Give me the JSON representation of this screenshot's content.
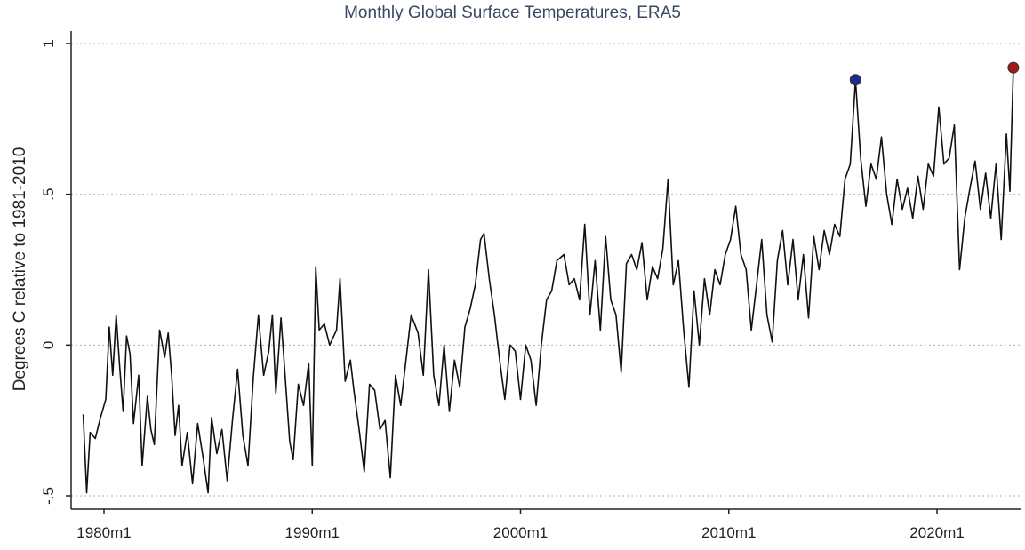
{
  "chart_data": {
    "type": "line",
    "title": "Monthly Global Surface Temperatures, ERA5",
    "xlabel": "",
    "ylabel": "Degrees C relative to 1981-2010",
    "xlim": [
      "1979m1",
      "2023m9"
    ],
    "ylim": [
      -0.52,
      1.05
    ],
    "x_ticks": [
      "1980m1",
      "1990m1",
      "2000m1",
      "2010m1",
      "2020m1"
    ],
    "y_ticks": [
      {
        "value": 1,
        "label": "1"
      },
      {
        "value": 0.5,
        "label": ".5"
      },
      {
        "value": 0,
        "label": "0"
      },
      {
        "value": -0.5,
        "label": "-.5"
      }
    ],
    "grid": "horizontal dotted",
    "line_color": "#111111",
    "series": [
      {
        "points": [
          [
            "1979-01",
            -0.23
          ],
          [
            "1979-03",
            -0.49
          ],
          [
            "1979-05",
            -0.29
          ],
          [
            "1979-08",
            -0.31
          ],
          [
            "1979-11",
            -0.24
          ],
          [
            "1980-02",
            -0.18
          ],
          [
            "1980-04",
            0.06
          ],
          [
            "1980-06",
            -0.1
          ],
          [
            "1980-08",
            0.1
          ],
          [
            "1980-10",
            -0.07
          ],
          [
            "1980-12",
            -0.22
          ],
          [
            "1981-02",
            0.03
          ],
          [
            "1981-04",
            -0.03
          ],
          [
            "1981-06",
            -0.26
          ],
          [
            "1981-09",
            -0.1
          ],
          [
            "1981-11",
            -0.4
          ],
          [
            "1982-02",
            -0.17
          ],
          [
            "1982-04",
            -0.28
          ],
          [
            "1982-06",
            -0.33
          ],
          [
            "1982-09",
            0.05
          ],
          [
            "1982-12",
            -0.04
          ],
          [
            "1983-02",
            0.04
          ],
          [
            "1983-04",
            -0.1
          ],
          [
            "1983-06",
            -0.3
          ],
          [
            "1983-08",
            -0.2
          ],
          [
            "1983-10",
            -0.4
          ],
          [
            "1984-01",
            -0.29
          ],
          [
            "1984-04",
            -0.46
          ],
          [
            "1984-07",
            -0.26
          ],
          [
            "1984-10",
            -0.37
          ],
          [
            "1985-01",
            -0.49
          ],
          [
            "1985-03",
            -0.24
          ],
          [
            "1985-06",
            -0.36
          ],
          [
            "1985-09",
            -0.28
          ],
          [
            "1985-12",
            -0.45
          ],
          [
            "1986-03",
            -0.25
          ],
          [
            "1986-06",
            -0.08
          ],
          [
            "1986-09",
            -0.3
          ],
          [
            "1986-12",
            -0.4
          ],
          [
            "1987-03",
            -0.11
          ],
          [
            "1987-06",
            0.1
          ],
          [
            "1987-09",
            -0.1
          ],
          [
            "1987-12",
            -0.02
          ],
          [
            "1988-02",
            0.1
          ],
          [
            "1988-04",
            -0.16
          ],
          [
            "1988-07",
            0.09
          ],
          [
            "1988-09",
            -0.07
          ],
          [
            "1988-12",
            -0.32
          ],
          [
            "1989-02",
            -0.38
          ],
          [
            "1989-05",
            -0.13
          ],
          [
            "1989-08",
            -0.2
          ],
          [
            "1989-11",
            -0.06
          ],
          [
            "1990-01",
            -0.4
          ],
          [
            "1990-03",
            0.26
          ],
          [
            "1990-05",
            0.05
          ],
          [
            "1990-08",
            0.07
          ],
          [
            "1990-11",
            0.0
          ],
          [
            "1991-03",
            0.05
          ],
          [
            "1991-05",
            0.22
          ],
          [
            "1991-08",
            -0.12
          ],
          [
            "1991-11",
            -0.05
          ],
          [
            "1992-01",
            -0.15
          ],
          [
            "1992-04",
            -0.28
          ],
          [
            "1992-07",
            -0.42
          ],
          [
            "1992-10",
            -0.13
          ],
          [
            "1993-01",
            -0.15
          ],
          [
            "1993-04",
            -0.28
          ],
          [
            "1993-07",
            -0.25
          ],
          [
            "1993-10",
            -0.44
          ],
          [
            "1994-01",
            -0.1
          ],
          [
            "1994-04",
            -0.2
          ],
          [
            "1994-07",
            -0.05
          ],
          [
            "1994-10",
            0.1
          ],
          [
            "1995-02",
            0.04
          ],
          [
            "1995-05",
            -0.1
          ],
          [
            "1995-08",
            0.25
          ],
          [
            "1995-11",
            -0.1
          ],
          [
            "1996-02",
            -0.2
          ],
          [
            "1996-05",
            0.0
          ],
          [
            "1996-08",
            -0.22
          ],
          [
            "1996-11",
            -0.05
          ],
          [
            "1997-02",
            -0.14
          ],
          [
            "1997-05",
            0.06
          ],
          [
            "1997-08",
            0.12
          ],
          [
            "1997-11",
            0.2
          ],
          [
            "1998-02",
            0.35
          ],
          [
            "1998-04",
            0.37
          ],
          [
            "1998-07",
            0.22
          ],
          [
            "1998-10",
            0.1
          ],
          [
            "1999-01",
            -0.05
          ],
          [
            "1999-04",
            -0.18
          ],
          [
            "1999-07",
            0.0
          ],
          [
            "1999-10",
            -0.02
          ],
          [
            "2000-01",
            -0.18
          ],
          [
            "2000-04",
            0.0
          ],
          [
            "2000-07",
            -0.05
          ],
          [
            "2000-10",
            -0.2
          ],
          [
            "2001-01",
            0.0
          ],
          [
            "2001-04",
            0.15
          ],
          [
            "2001-07",
            0.18
          ],
          [
            "2001-10",
            0.28
          ],
          [
            "2002-02",
            0.3
          ],
          [
            "2002-05",
            0.2
          ],
          [
            "2002-08",
            0.22
          ],
          [
            "2002-11",
            0.15
          ],
          [
            "2003-02",
            0.4
          ],
          [
            "2003-05",
            0.1
          ],
          [
            "2003-08",
            0.28
          ],
          [
            "2003-11",
            0.05
          ],
          [
            "2004-02",
            0.36
          ],
          [
            "2004-05",
            0.15
          ],
          [
            "2004-08",
            0.1
          ],
          [
            "2004-11",
            -0.09
          ],
          [
            "2005-02",
            0.27
          ],
          [
            "2005-05",
            0.3
          ],
          [
            "2005-08",
            0.25
          ],
          [
            "2005-11",
            0.34
          ],
          [
            "2006-02",
            0.15
          ],
          [
            "2006-05",
            0.26
          ],
          [
            "2006-08",
            0.22
          ],
          [
            "2006-11",
            0.32
          ],
          [
            "2007-02",
            0.55
          ],
          [
            "2007-05",
            0.2
          ],
          [
            "2007-08",
            0.28
          ],
          [
            "2007-11",
            0.05
          ],
          [
            "2008-02",
            -0.14
          ],
          [
            "2008-05",
            0.18
          ],
          [
            "2008-08",
            0.0
          ],
          [
            "2008-11",
            0.22
          ],
          [
            "2009-02",
            0.1
          ],
          [
            "2009-05",
            0.25
          ],
          [
            "2009-08",
            0.2
          ],
          [
            "2009-11",
            0.3
          ],
          [
            "2010-02",
            0.35
          ],
          [
            "2010-05",
            0.46
          ],
          [
            "2010-08",
            0.3
          ],
          [
            "2010-11",
            0.25
          ],
          [
            "2011-02",
            0.05
          ],
          [
            "2011-05",
            0.2
          ],
          [
            "2011-08",
            0.35
          ],
          [
            "2011-11",
            0.1
          ],
          [
            "2012-02",
            0.01
          ],
          [
            "2012-05",
            0.28
          ],
          [
            "2012-08",
            0.38
          ],
          [
            "2012-11",
            0.2
          ],
          [
            "2013-02",
            0.35
          ],
          [
            "2013-05",
            0.15
          ],
          [
            "2013-08",
            0.3
          ],
          [
            "2013-11",
            0.09
          ],
          [
            "2014-02",
            0.36
          ],
          [
            "2014-05",
            0.25
          ],
          [
            "2014-08",
            0.38
          ],
          [
            "2014-11",
            0.3
          ],
          [
            "2015-02",
            0.4
          ],
          [
            "2015-05",
            0.36
          ],
          [
            "2015-08",
            0.55
          ],
          [
            "2015-11",
            0.6
          ],
          [
            "2016-02",
            0.88
          ],
          [
            "2016-05",
            0.62
          ],
          [
            "2016-08",
            0.46
          ],
          [
            "2016-11",
            0.6
          ],
          [
            "2017-02",
            0.55
          ],
          [
            "2017-05",
            0.69
          ],
          [
            "2017-08",
            0.5
          ],
          [
            "2017-11",
            0.4
          ],
          [
            "2018-02",
            0.55
          ],
          [
            "2018-05",
            0.45
          ],
          [
            "2018-08",
            0.52
          ],
          [
            "2018-11",
            0.42
          ],
          [
            "2019-02",
            0.56
          ],
          [
            "2019-05",
            0.45
          ],
          [
            "2019-08",
            0.6
          ],
          [
            "2019-11",
            0.56
          ],
          [
            "2020-02",
            0.79
          ],
          [
            "2020-05",
            0.6
          ],
          [
            "2020-08",
            0.62
          ],
          [
            "2020-11",
            0.73
          ],
          [
            "2021-02",
            0.25
          ],
          [
            "2021-05",
            0.42
          ],
          [
            "2021-08",
            0.52
          ],
          [
            "2021-11",
            0.61
          ],
          [
            "2022-02",
            0.45
          ],
          [
            "2022-05",
            0.57
          ],
          [
            "2022-08",
            0.42
          ],
          [
            "2022-11",
            0.6
          ],
          [
            "2023-02",
            0.35
          ],
          [
            "2023-05",
            0.7
          ],
          [
            "2023-07",
            0.51
          ],
          [
            "2023-09",
            0.92
          ]
        ]
      }
    ],
    "highlights": [
      {
        "x": "2016-02",
        "y": 0.88,
        "color": "#1f2a8a"
      },
      {
        "x": "2023-09",
        "y": 0.92,
        "color": "#a01818"
      }
    ]
  }
}
